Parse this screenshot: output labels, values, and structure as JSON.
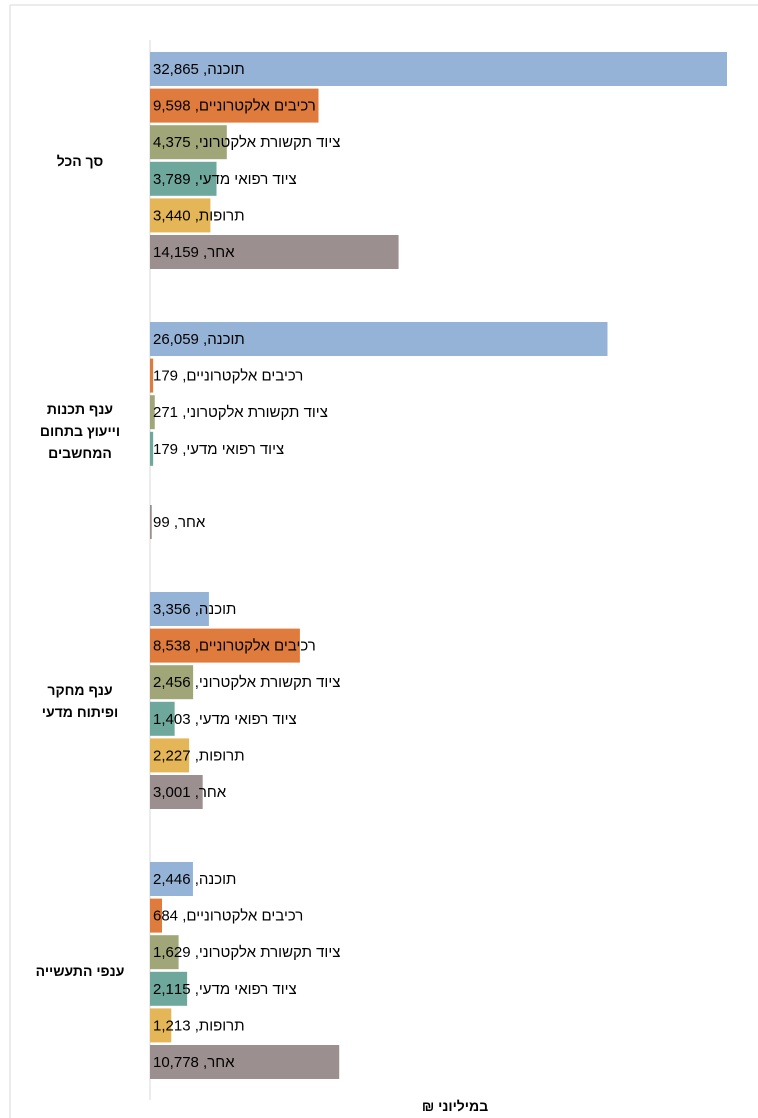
{
  "chart_data": {
    "type": "bar",
    "orientation": "horizontal",
    "x_label": "במיליוני ₪",
    "categories": [
      "סך הכל",
      "ענף תכנות וייעוץ בתחום המחשבים",
      "ענף מחקר ופיתוח מדעי",
      "ענפי התעשייה"
    ],
    "series": [
      {
        "color": "#95b3d7",
        "values": [
          32865,
          26059,
          3356,
          2446
        ],
        "value_labels": [
          "תוכנה, 32,865",
          "תוכנה, 26,059",
          "תוכנה, 3,356",
          "תוכנה, 2,446"
        ]
      },
      {
        "color": "#e07b3e",
        "values": [
          9598,
          179,
          8538,
          684
        ],
        "value_labels": [
          "רכיבים אלקטרוניים, 9,598",
          "רכיבים אלקטרוניים, 179",
          "רכיבים אלקטרוניים, 8,538",
          "רכיבים אלקטרוניים, 684"
        ]
      },
      {
        "color": "#a0a678",
        "values": [
          4375,
          271,
          2456,
          1629
        ],
        "value_labels": [
          "ציוד תקשורת אלקטרוני, 4,375",
          "ציוד תקשורת אלקטרוני, 271",
          "ציוד תקשורת אלקטרוני, 2,456",
          "ציוד תקשורת אלקטרוני, 1,629"
        ]
      },
      {
        "color": "#6ea89c",
        "values": [
          3789,
          179,
          1403,
          2115
        ],
        "value_labels": [
          "ציוד רפואי מדעי, 3,789",
          "ציוד רפואי מדעי, 179",
          "ציוד רפואי מדעי, 1,403",
          "ציוד רפואי מדעי, 2,115"
        ]
      },
      {
        "color": "#e5b658",
        "values": [
          3440,
          null,
          2227,
          1213
        ],
        "value_labels": [
          "תרופות, 3,440",
          null,
          "תרופות, 2,227",
          "תרופות, 1,213"
        ]
      },
      {
        "color": "#9c8f8f",
        "values": [
          14159,
          99,
          3001,
          10778
        ],
        "value_labels": [
          "אחר, 14,159",
          "אחר, 99",
          "אחר, 3,001",
          "אחר, 10,778"
        ]
      }
    ]
  }
}
